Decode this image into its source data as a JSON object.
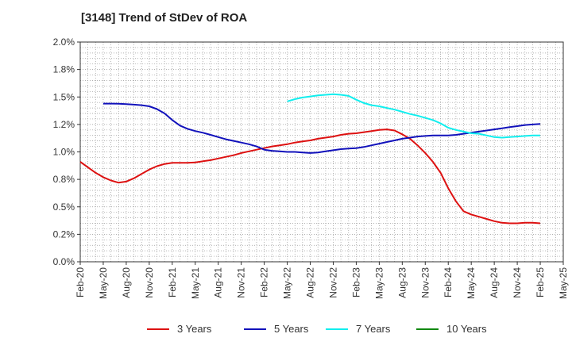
{
  "chart_data": {
    "type": "line",
    "title": "[3148]  Trend of StDev of ROA",
    "xlabel": "",
    "ylabel": "",
    "x_ticks": [
      "Feb-20",
      "May-20",
      "Aug-20",
      "Nov-20",
      "Feb-21",
      "May-21",
      "Aug-21",
      "Nov-21",
      "Feb-22",
      "May-22",
      "Aug-22",
      "Nov-22",
      "Feb-23",
      "May-23",
      "Aug-23",
      "Nov-23",
      "Feb-24",
      "May-24",
      "Aug-24",
      "Nov-24",
      "Feb-25",
      "May-25"
    ],
    "y_ticks": [
      "0.0%",
      "0.2%",
      "0.5%",
      "0.8%",
      "1.0%",
      "1.2%",
      "1.5%",
      "1.8%",
      "2.0%"
    ],
    "ylim": [
      0,
      2.0
    ],
    "grid": true,
    "legend_position": "bottom",
    "series": [
      {
        "name": "3 Years",
        "color": "#dd1111",
        "points": [
          [
            "Feb-20",
            0.91
          ],
          [
            "Mar-20",
            0.86
          ],
          [
            "Apr-20",
            0.81
          ],
          [
            "May-20",
            0.77
          ],
          [
            "Jun-20",
            0.74
          ],
          [
            "Jul-20",
            0.72
          ],
          [
            "Aug-20",
            0.73
          ],
          [
            "Sep-20",
            0.76
          ],
          [
            "Oct-20",
            0.8
          ],
          [
            "Nov-20",
            0.84
          ],
          [
            "Dec-20",
            0.87
          ],
          [
            "Jan-21",
            0.89
          ],
          [
            "Feb-21",
            0.9
          ],
          [
            "Mar-21",
            0.9
          ],
          [
            "Apr-21",
            0.9
          ],
          [
            "May-21",
            0.905
          ],
          [
            "Jun-21",
            0.915
          ],
          [
            "Jul-21",
            0.925
          ],
          [
            "Aug-21",
            0.94
          ],
          [
            "Sep-21",
            0.955
          ],
          [
            "Oct-21",
            0.97
          ],
          [
            "Nov-21",
            0.99
          ],
          [
            "Dec-21",
            1.005
          ],
          [
            "Jan-22",
            1.02
          ],
          [
            "Feb-22",
            1.035
          ],
          [
            "Mar-22",
            1.05
          ],
          [
            "Apr-22",
            1.06
          ],
          [
            "May-22",
            1.07
          ],
          [
            "Jun-22",
            1.085
          ],
          [
            "Jul-22",
            1.095
          ],
          [
            "Aug-22",
            1.105
          ],
          [
            "Sep-22",
            1.12
          ],
          [
            "Oct-22",
            1.13
          ],
          [
            "Nov-22",
            1.14
          ],
          [
            "Dec-22",
            1.155
          ],
          [
            "Jan-23",
            1.165
          ],
          [
            "Feb-23",
            1.17
          ],
          [
            "Mar-23",
            1.18
          ],
          [
            "Apr-23",
            1.19
          ],
          [
            "May-23",
            1.2
          ],
          [
            "Jun-23",
            1.205
          ],
          [
            "Jul-23",
            1.195
          ],
          [
            "Aug-23",
            1.16
          ],
          [
            "Sep-23",
            1.12
          ],
          [
            "Oct-23",
            1.06
          ],
          [
            "Nov-23",
            0.99
          ],
          [
            "Dec-23",
            0.91
          ],
          [
            "Jan-24",
            0.81
          ],
          [
            "Feb-24",
            0.67
          ],
          [
            "Mar-24",
            0.55
          ],
          [
            "Apr-24",
            0.46
          ],
          [
            "May-24",
            0.43
          ],
          [
            "Jun-24",
            0.41
          ],
          [
            "Jul-24",
            0.39
          ],
          [
            "Aug-24",
            0.37
          ],
          [
            "Sep-24",
            0.355
          ],
          [
            "Oct-24",
            0.35
          ],
          [
            "Nov-24",
            0.35
          ],
          [
            "Dec-24",
            0.355
          ],
          [
            "Jan-25",
            0.355
          ],
          [
            "Feb-25",
            0.35
          ]
        ]
      },
      {
        "name": "5 Years",
        "color": "#1111bb",
        "points": [
          [
            "May-20",
            1.44
          ],
          [
            "Jun-20",
            1.44
          ],
          [
            "Jul-20",
            1.438
          ],
          [
            "Aug-20",
            1.435
          ],
          [
            "Sep-20",
            1.43
          ],
          [
            "Oct-20",
            1.425
          ],
          [
            "Nov-20",
            1.415
          ],
          [
            "Dec-20",
            1.39
          ],
          [
            "Jan-21",
            1.35
          ],
          [
            "Feb-21",
            1.29
          ],
          [
            "Mar-21",
            1.24
          ],
          [
            "Apr-21",
            1.21
          ],
          [
            "May-21",
            1.19
          ],
          [
            "Jun-21",
            1.175
          ],
          [
            "Jul-21",
            1.155
          ],
          [
            "Aug-21",
            1.135
          ],
          [
            "Sep-21",
            1.115
          ],
          [
            "Oct-21",
            1.1
          ],
          [
            "Nov-21",
            1.085
          ],
          [
            "Dec-21",
            1.07
          ],
          [
            "Jan-22",
            1.05
          ],
          [
            "Feb-22",
            1.02
          ],
          [
            "Mar-22",
            1.01
          ],
          [
            "Apr-22",
            1.005
          ],
          [
            "May-22",
            1.0
          ],
          [
            "Jun-22",
            1.0
          ],
          [
            "Jul-22",
            0.995
          ],
          [
            "Aug-22",
            0.99
          ],
          [
            "Sep-22",
            0.995
          ],
          [
            "Oct-22",
            1.005
          ],
          [
            "Nov-22",
            1.015
          ],
          [
            "Dec-22",
            1.025
          ],
          [
            "Jan-23",
            1.03
          ],
          [
            "Feb-23",
            1.035
          ],
          [
            "Mar-23",
            1.045
          ],
          [
            "Apr-23",
            1.06
          ],
          [
            "May-23",
            1.075
          ],
          [
            "Jun-23",
            1.09
          ],
          [
            "Jul-23",
            1.105
          ],
          [
            "Aug-23",
            1.12
          ],
          [
            "Sep-23",
            1.13
          ],
          [
            "Oct-23",
            1.14
          ],
          [
            "Nov-23",
            1.145
          ],
          [
            "Dec-23",
            1.15
          ],
          [
            "Jan-24",
            1.15
          ],
          [
            "Feb-24",
            1.15
          ],
          [
            "Mar-24",
            1.155
          ],
          [
            "Apr-24",
            1.165
          ],
          [
            "May-24",
            1.175
          ],
          [
            "Jun-24",
            1.185
          ],
          [
            "Jul-24",
            1.195
          ],
          [
            "Aug-24",
            1.205
          ],
          [
            "Sep-24",
            1.215
          ],
          [
            "Oct-24",
            1.225
          ],
          [
            "Nov-24",
            1.235
          ],
          [
            "Dec-24",
            1.245
          ],
          [
            "Jan-25",
            1.25
          ],
          [
            "Feb-25",
            1.255
          ]
        ]
      },
      {
        "name": "7 Years",
        "color": "#11eeee",
        "points": [
          [
            "May-22",
            1.46
          ],
          [
            "Jun-22",
            1.48
          ],
          [
            "Jul-22",
            1.495
          ],
          [
            "Aug-22",
            1.505
          ],
          [
            "Sep-22",
            1.515
          ],
          [
            "Oct-22",
            1.52
          ],
          [
            "Nov-22",
            1.525
          ],
          [
            "Dec-22",
            1.52
          ],
          [
            "Jan-23",
            1.51
          ],
          [
            "Feb-23",
            1.475
          ],
          [
            "Mar-23",
            1.445
          ],
          [
            "Apr-23",
            1.425
          ],
          [
            "May-23",
            1.415
          ],
          [
            "Jun-23",
            1.4
          ],
          [
            "Jul-23",
            1.385
          ],
          [
            "Aug-23",
            1.365
          ],
          [
            "Sep-23",
            1.345
          ],
          [
            "Oct-23",
            1.33
          ],
          [
            "Nov-23",
            1.31
          ],
          [
            "Dec-23",
            1.29
          ],
          [
            "Jan-24",
            1.26
          ],
          [
            "Feb-24",
            1.22
          ],
          [
            "Mar-24",
            1.2
          ],
          [
            "Apr-24",
            1.185
          ],
          [
            "May-24",
            1.17
          ],
          [
            "Jun-24",
            1.165
          ],
          [
            "Jul-24",
            1.15
          ],
          [
            "Aug-24",
            1.135
          ],
          [
            "Sep-24",
            1.13
          ],
          [
            "Oct-24",
            1.135
          ],
          [
            "Nov-24",
            1.14
          ],
          [
            "Dec-24",
            1.145
          ],
          [
            "Jan-25",
            1.15
          ],
          [
            "Feb-25",
            1.15
          ]
        ]
      },
      {
        "name": "10 Years",
        "color": "#118811",
        "points": []
      }
    ]
  }
}
